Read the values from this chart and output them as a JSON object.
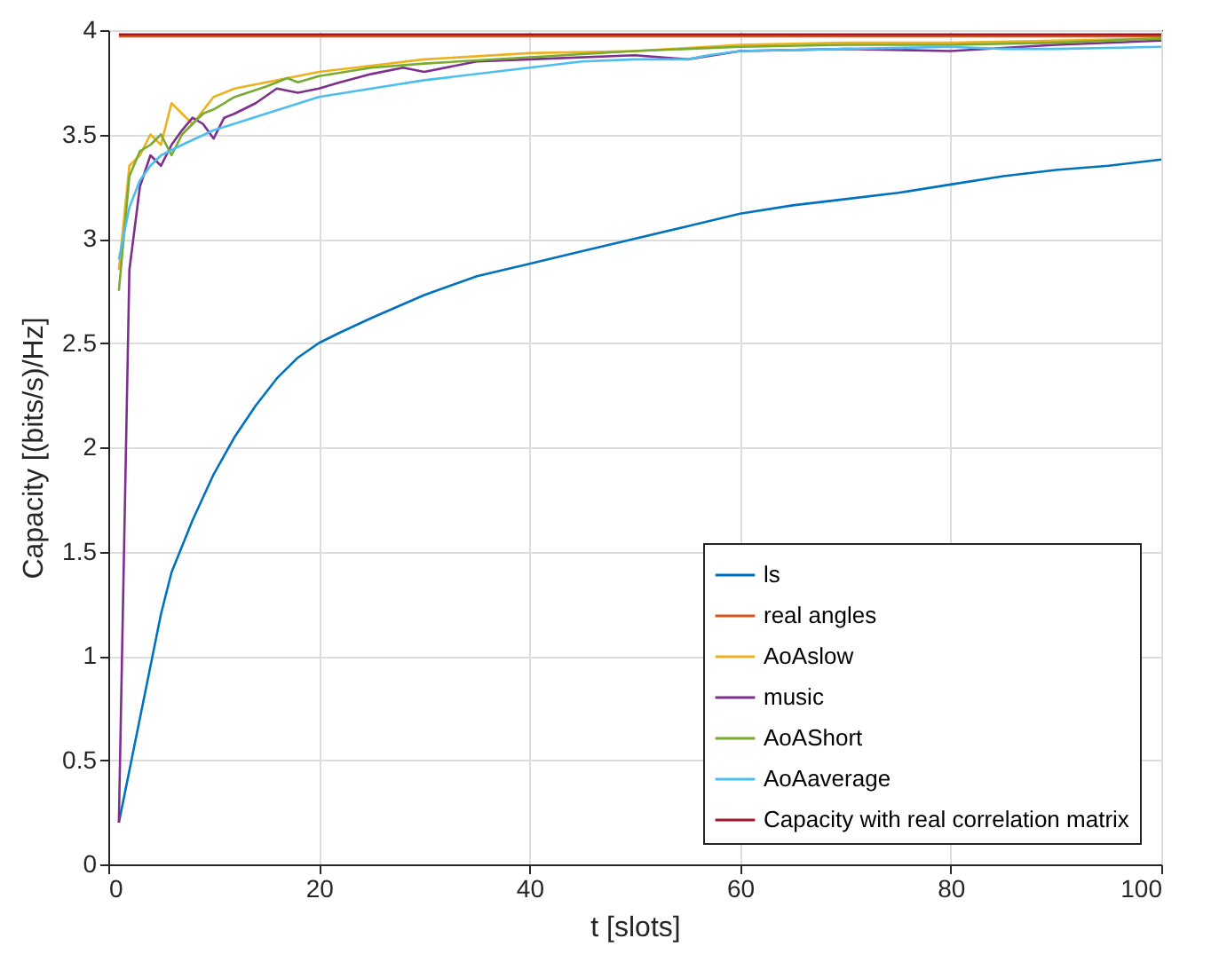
{
  "chart_data": {
    "type": "line",
    "xlabel": "t [slots]",
    "ylabel": "Capacity [(bits/s)/Hz]",
    "xlim": [
      0,
      100
    ],
    "ylim": [
      0,
      4
    ],
    "xticks": [
      0,
      20,
      40,
      60,
      80,
      100
    ],
    "yticks": [
      0,
      0.5,
      1,
      1.5,
      2,
      2.5,
      3,
      3.5,
      4
    ],
    "grid": true,
    "legend": "bottom right",
    "line_style": "solid",
    "series": [
      {
        "name": "ls",
        "color": "#0072bd",
        "x": [
          1,
          2,
          3,
          4,
          5,
          6,
          8,
          10,
          12,
          14,
          16,
          18,
          20,
          22,
          25,
          30,
          35,
          40,
          45,
          50,
          55,
          60,
          65,
          70,
          75,
          80,
          85,
          90,
          95,
          100
        ],
        "values": [
          0.2,
          0.45,
          0.7,
          0.95,
          1.2,
          1.4,
          1.65,
          1.87,
          2.05,
          2.2,
          2.33,
          2.43,
          2.5,
          2.55,
          2.62,
          2.73,
          2.82,
          2.88,
          2.94,
          3.0,
          3.06,
          3.12,
          3.16,
          3.19,
          3.22,
          3.26,
          3.3,
          3.33,
          3.35,
          3.38
        ]
      },
      {
        "name": "real angles",
        "color": "#d95319",
        "x": [
          1,
          100
        ],
        "values": [
          3.97,
          3.97
        ]
      },
      {
        "name": "AoAslow",
        "color": "#edb120",
        "x": [
          1,
          2,
          3,
          4,
          5,
          6,
          7,
          8,
          10,
          12,
          15,
          20,
          25,
          30,
          40,
          50,
          60,
          70,
          80,
          90,
          100
        ],
        "values": [
          2.85,
          3.35,
          3.4,
          3.5,
          3.45,
          3.65,
          3.6,
          3.55,
          3.68,
          3.72,
          3.75,
          3.8,
          3.83,
          3.86,
          3.89,
          3.9,
          3.93,
          3.94,
          3.94,
          3.95,
          3.96
        ]
      },
      {
        "name": "music",
        "color": "#7e2f8e",
        "x": [
          1,
          2,
          3,
          4,
          5,
          6,
          7,
          8,
          9,
          10,
          11,
          12,
          14,
          16,
          18,
          20,
          22,
          25,
          28,
          30,
          35,
          40,
          50,
          55,
          60,
          70,
          80,
          90,
          100
        ],
        "values": [
          0.2,
          2.85,
          3.25,
          3.4,
          3.35,
          3.45,
          3.52,
          3.58,
          3.55,
          3.48,
          3.58,
          3.6,
          3.65,
          3.72,
          3.7,
          3.72,
          3.75,
          3.79,
          3.82,
          3.8,
          3.85,
          3.86,
          3.88,
          3.86,
          3.9,
          3.91,
          3.9,
          3.93,
          3.95
        ]
      },
      {
        "name": "AoAShort",
        "color": "#77ac30",
        "x": [
          1,
          2,
          3,
          4,
          5,
          6,
          7,
          9,
          10,
          12,
          15,
          17,
          18,
          20,
          25,
          30,
          40,
          50,
          60,
          70,
          80,
          90,
          100
        ],
        "values": [
          2.75,
          3.3,
          3.42,
          3.45,
          3.5,
          3.4,
          3.5,
          3.6,
          3.62,
          3.68,
          3.73,
          3.77,
          3.75,
          3.78,
          3.82,
          3.84,
          3.87,
          3.9,
          3.92,
          3.93,
          3.93,
          3.94,
          3.96
        ]
      },
      {
        "name": "AoAaverage",
        "color": "#4dbeee",
        "x": [
          1,
          2,
          3,
          4,
          5,
          7,
          10,
          15,
          20,
          25,
          30,
          40,
          45,
          50,
          55,
          57,
          60,
          70,
          80,
          85,
          90,
          100
        ],
        "values": [
          2.9,
          3.15,
          3.28,
          3.35,
          3.4,
          3.45,
          3.52,
          3.6,
          3.68,
          3.72,
          3.76,
          3.82,
          3.85,
          3.86,
          3.86,
          3.88,
          3.9,
          3.91,
          3.92,
          3.91,
          3.91,
          3.92
        ]
      },
      {
        "name": "Capacity with real correlation matrix",
        "color": "#a2142f",
        "x": [
          1,
          100
        ],
        "values": [
          3.98,
          3.98
        ]
      }
    ]
  }
}
